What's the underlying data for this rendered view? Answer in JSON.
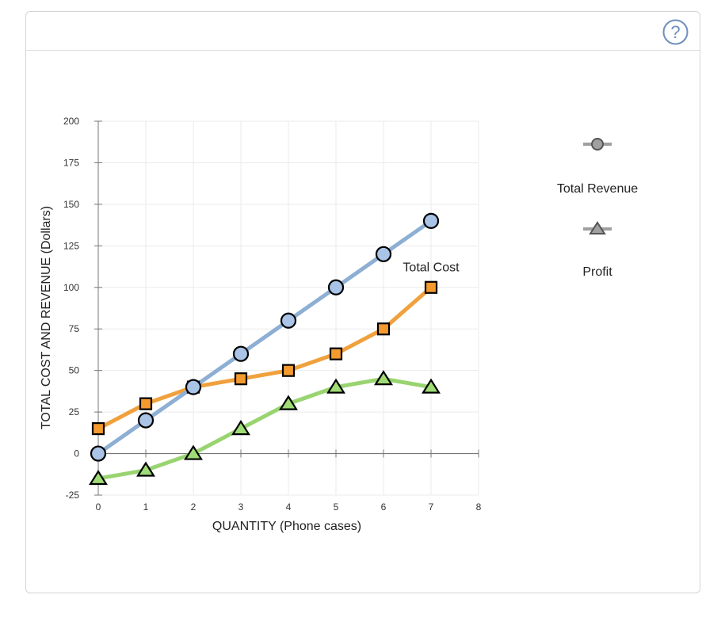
{
  "help": {
    "label": "?",
    "icon": "help-icon"
  },
  "chart_data": {
    "type": "line",
    "xlabel": "QUANTITY (Phone cases)",
    "ylabel": "TOTAL COST AND REVENUE (Dollars)",
    "xlim": [
      0,
      8
    ],
    "ylim": [
      -25,
      200
    ],
    "x_ticks": [
      0,
      1,
      2,
      3,
      4,
      5,
      6,
      7,
      8
    ],
    "y_ticks": [
      -25,
      0,
      25,
      50,
      75,
      100,
      125,
      150,
      175,
      200
    ],
    "grid": true,
    "x": [
      0,
      1,
      2,
      3,
      4,
      5,
      6,
      7
    ],
    "series": [
      {
        "name": "Total Revenue",
        "marker": "circle",
        "color": "#8eafd4",
        "marker_fill": "#a9c4e6",
        "values": [
          0,
          20,
          40,
          60,
          80,
          100,
          120,
          140
        ]
      },
      {
        "name": "Total Cost",
        "marker": "square",
        "color": "#f0a13d",
        "marker_fill": "#f49a2f",
        "values": [
          15,
          30,
          40,
          45,
          50,
          60,
          75,
          100
        ]
      },
      {
        "name": "Profit",
        "marker": "triangle",
        "color": "#99d470",
        "marker_fill": "#9fdc76",
        "values": [
          -15,
          -10,
          0,
          15,
          30,
          40,
          45,
          40
        ]
      }
    ],
    "annotations": [
      {
        "text": "Total Cost",
        "x": 7,
        "y": 112
      }
    ],
    "legend": {
      "placement": "right",
      "items": [
        {
          "label": "Total Revenue",
          "marker": "circle",
          "line_color": "#a0a0a0",
          "marker_fill": "#a0a0a0"
        },
        {
          "label": "Profit",
          "marker": "triangle",
          "line_color": "#a0a0a0",
          "marker_fill": "#a0a0a0"
        }
      ]
    }
  }
}
